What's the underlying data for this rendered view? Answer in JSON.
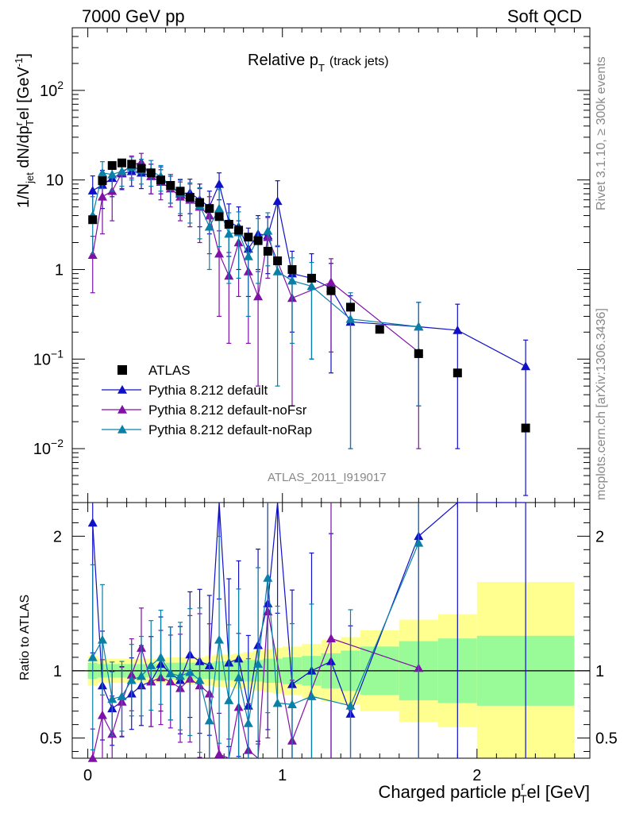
{
  "header": {
    "left": "7000 GeV pp",
    "right": "Soft QCD"
  },
  "side": {
    "rivet": "Rivet 3.1.10, ≥ 300k events",
    "mcplots": "mcplots.cern.ch [arXiv:1306.3436]"
  },
  "chart_data": {
    "type": "scatter",
    "title_main": "Relative p",
    "title_sub": "T",
    "title_extra": "(track jets)",
    "analysis_id": "ATLAS_2011_I919017",
    "ylabel": "1/N",
    "ylabel_sub": "jet",
    "ylabel_rest": " dN/dp",
    "ylabel_sup": "r",
    "ylabel_sub2": "T",
    "ylabel_end": "el [GeV",
    "ylabel_unit_sup": "-1",
    "ylabel_close": "]",
    "ratio_label": "Ratio to ATLAS",
    "xlabel": "Charged particle p",
    "xlabel_sup": "r",
    "xlabel_sub": "T",
    "xlabel_end": "el [GeV]",
    "xlim": [
      -0.08,
      2.58
    ],
    "ylim_log": [
      0.0025,
      500
    ],
    "ratio_ylim": [
      0.35,
      2.25
    ],
    "main_ticks": [
      {
        "value": 0.01,
        "base": "10",
        "exp": "−2"
      },
      {
        "value": 0.1,
        "base": "10",
        "exp": "−1"
      },
      {
        "value": 1,
        "base": "1",
        "exp": ""
      },
      {
        "value": 10,
        "base": "10",
        "exp": ""
      },
      {
        "value": 100,
        "base": "10",
        "exp": "2"
      }
    ],
    "x_ticks": [
      {
        "value": 0,
        "label": "0"
      },
      {
        "value": 1,
        "label": "1"
      },
      {
        "value": 2,
        "label": "2"
      }
    ],
    "ratio_ticks": [
      {
        "value": 0.5,
        "label": "0.5"
      },
      {
        "value": 1,
        "label": "1"
      },
      {
        "value": 2,
        "label": "2"
      }
    ],
    "legend": [
      {
        "name": "ATLAS",
        "color": "#000000",
        "marker": "square"
      },
      {
        "name": "Pythia 8.212 default",
        "color": "#1010c8",
        "marker": "triangle"
      },
      {
        "name": "Pythia 8.212 default-noFsr",
        "color": "#8010a8",
        "marker": "triangle"
      },
      {
        "name": "Pythia 8.212 default-noRap",
        "color": "#0a80a8",
        "marker": "triangle"
      }
    ],
    "data": {
      "x": [
        0.025,
        0.075,
        0.125,
        0.175,
        0.225,
        0.275,
        0.325,
        0.375,
        0.425,
        0.475,
        0.525,
        0.575,
        0.625,
        0.675,
        0.725,
        0.775,
        0.825,
        0.875,
        0.925,
        0.975,
        1.05,
        1.15,
        1.25,
        1.35,
        1.5,
        1.7,
        1.9,
        2.25
      ],
      "y": [
        3.6,
        9.8,
        14.5,
        15.5,
        15.0,
        13.5,
        12.0,
        10.0,
        8.7,
        7.5,
        6.4,
        5.6,
        4.8,
        3.9,
        3.2,
        2.75,
        2.3,
        2.1,
        1.6,
        1.25,
        1.0,
        0.8,
        0.58,
        0.38,
        0.215,
        0.115,
        0.07,
        0.017
      ]
    },
    "series": [
      {
        "name": "Pythia 8.212 default",
        "color": "#1010c8",
        "points": [
          [
            0.025,
            7.6
          ],
          [
            0.075,
            8.8
          ],
          [
            0.125,
            10.5
          ],
          [
            0.175,
            11.8
          ],
          [
            0.225,
            12.5
          ],
          [
            0.275,
            12.0
          ],
          [
            0.325,
            11.0
          ],
          [
            0.375,
            10.5
          ],
          [
            0.425,
            8.5
          ],
          [
            0.475,
            7.0
          ],
          [
            0.525,
            7.2
          ],
          [
            0.575,
            6.0
          ],
          [
            0.625,
            5.0
          ],
          [
            0.675,
            9.0
          ],
          [
            0.725,
            3.4
          ],
          [
            0.775,
            3.0
          ],
          [
            0.825,
            1.7
          ],
          [
            0.875,
            2.5
          ],
          [
            0.925,
            2.4
          ],
          [
            0.975,
            5.8
          ],
          [
            1.05,
            0.9
          ],
          [
            1.15,
            0.8
          ],
          [
            1.25,
            0.62
          ],
          [
            1.35,
            0.26
          ],
          [
            1.7,
            0.23
          ],
          [
            1.9,
            0.21
          ],
          [
            2.25,
            0.083
          ]
        ],
        "err": [
          3.5,
          4,
          4,
          4,
          4,
          4,
          4,
          3.5,
          3,
          3,
          3,
          3,
          2.5,
          3,
          2,
          2,
          1.2,
          1.5,
          1.5,
          4,
          0.7,
          0.7,
          0.55,
          0.25,
          0.2,
          0.2,
          0.08
        ],
        "ratio": [
          [
            0.025,
            2.1
          ],
          [
            0.075,
            0.89
          ],
          [
            0.125,
            0.72
          ],
          [
            0.175,
            0.77
          ],
          [
            0.225,
            0.83
          ],
          [
            0.275,
            0.89
          ],
          [
            0.325,
            0.92
          ],
          [
            0.375,
            1.05
          ],
          [
            0.425,
            0.98
          ],
          [
            0.475,
            0.93
          ],
          [
            0.525,
            1.12
          ],
          [
            0.575,
            1.07
          ],
          [
            0.625,
            1.04
          ],
          [
            0.675,
            2.3
          ],
          [
            0.725,
            1.06
          ],
          [
            0.775,
            1.09
          ],
          [
            0.825,
            0.74
          ],
          [
            0.875,
            1.19
          ],
          [
            0.925,
            1.5
          ],
          [
            0.975,
            4.6
          ],
          [
            1.05,
            0.9
          ],
          [
            1.15,
            1.0
          ],
          [
            1.25,
            1.07
          ],
          [
            1.35,
            0.68
          ],
          [
            1.7,
            2.0
          ],
          [
            1.9,
            3.0
          ],
          [
            2.25,
            4.9
          ]
        ]
      },
      {
        "name": "Pythia 8.212 default-noFsr",
        "color": "#8010a8",
        "points": [
          [
            0.025,
            1.45
          ],
          [
            0.075,
            6.5
          ],
          [
            0.125,
            7.5
          ],
          [
            0.175,
            12.0
          ],
          [
            0.225,
            14.5
          ],
          [
            0.275,
            15.8
          ],
          [
            0.325,
            11.0
          ],
          [
            0.375,
            9.5
          ],
          [
            0.425,
            8.0
          ],
          [
            0.475,
            6.5
          ],
          [
            0.525,
            6.0
          ],
          [
            0.575,
            5.0
          ],
          [
            0.625,
            4.0
          ],
          [
            0.675,
            1.5
          ],
          [
            0.725,
            0.85
          ],
          [
            0.775,
            2.0
          ],
          [
            0.825,
            0.95
          ],
          [
            0.875,
            0.5
          ],
          [
            0.925,
            2.3
          ],
          [
            1.05,
            0.48
          ],
          [
            1.25,
            0.72
          ],
          [
            1.7,
            0.12
          ]
        ],
        "err": [
          0.9,
          4,
          4,
          4,
          4,
          4,
          4,
          3.5,
          3,
          3,
          3,
          3,
          2.5,
          1.2,
          0.7,
          1.5,
          0.8,
          0.45,
          1.5,
          0.45,
          0.6,
          0.11
        ],
        "ratio": [
          [
            0.025,
            0.35
          ],
          [
            0.075,
            0.67
          ],
          [
            0.125,
            0.53
          ],
          [
            0.175,
            0.77
          ],
          [
            0.225,
            0.97
          ],
          [
            0.275,
            1.17
          ],
          [
            0.325,
            0.92
          ],
          [
            0.375,
            0.95
          ],
          [
            0.425,
            0.92
          ],
          [
            0.475,
            0.87
          ],
          [
            0.525,
            0.94
          ],
          [
            0.575,
            0.89
          ],
          [
            0.625,
            0.83
          ],
          [
            0.675,
            0.38
          ],
          [
            0.725,
            0.27
          ],
          [
            0.775,
            0.73
          ],
          [
            0.825,
            0.41
          ],
          [
            0.875,
            0.24
          ],
          [
            0.925,
            1.44
          ],
          [
            1.05,
            0.48
          ],
          [
            1.25,
            1.24
          ],
          [
            1.7,
            1.02
          ]
        ]
      },
      {
        "name": "Pythia 8.212 default-noRap",
        "color": "#0a80a8",
        "points": [
          [
            0.025,
            4.0
          ],
          [
            0.075,
            12.0
          ],
          [
            0.125,
            11.5
          ],
          [
            0.175,
            12.5
          ],
          [
            0.225,
            14.0
          ],
          [
            0.275,
            13.0
          ],
          [
            0.325,
            12.5
          ],
          [
            0.375,
            11.0
          ],
          [
            0.425,
            8.5
          ],
          [
            0.475,
            7.2
          ],
          [
            0.525,
            6.3
          ],
          [
            0.575,
            5.2
          ],
          [
            0.625,
            3.0
          ],
          [
            0.675,
            4.8
          ],
          [
            0.725,
            2.5
          ],
          [
            0.775,
            2.6
          ],
          [
            0.825,
            1.4
          ],
          [
            0.875,
            2.2
          ],
          [
            0.925,
            2.7
          ],
          [
            0.975,
            0.95
          ],
          [
            1.05,
            0.75
          ],
          [
            1.15,
            0.65
          ],
          [
            1.35,
            0.28
          ],
          [
            1.7,
            0.23
          ]
        ],
        "err": [
          2.5,
          4,
          4,
          4,
          4,
          4,
          4,
          3.5,
          3,
          3,
          3,
          3,
          2,
          3,
          1.8,
          1.8,
          1.1,
          1.5,
          1.6,
          0.9,
          0.6,
          0.55,
          0.27,
          0.2
        ],
        "ratio": [
          [
            0.025,
            1.1
          ],
          [
            0.075,
            1.23
          ],
          [
            0.125,
            0.79
          ],
          [
            0.175,
            0.81
          ],
          [
            0.225,
            0.93
          ],
          [
            0.275,
            0.96
          ],
          [
            0.325,
            1.04
          ],
          [
            0.375,
            1.1
          ],
          [
            0.425,
            0.98
          ],
          [
            0.475,
            0.96
          ],
          [
            0.525,
            0.99
          ],
          [
            0.575,
            0.93
          ],
          [
            0.625,
            0.63
          ],
          [
            0.675,
            1.23
          ],
          [
            0.725,
            0.78
          ],
          [
            0.775,
            0.95
          ],
          [
            0.825,
            0.61
          ],
          [
            0.875,
            1.05
          ],
          [
            0.925,
            1.69
          ],
          [
            0.975,
            0.76
          ],
          [
            1.05,
            0.75
          ],
          [
            1.15,
            0.81
          ],
          [
            1.35,
            0.74
          ],
          [
            1.7,
            1.95
          ]
        ]
      }
    ],
    "bands": {
      "edges": [
        0.0,
        0.05,
        0.1,
        0.15,
        0.2,
        0.25,
        0.3,
        0.35,
        0.4,
        0.45,
        0.5,
        0.55,
        0.6,
        0.65,
        0.7,
        0.75,
        0.8,
        0.85,
        0.9,
        0.95,
        1.0,
        1.1,
        1.2,
        1.3,
        1.4,
        1.6,
        1.8,
        2.0,
        2.5
      ],
      "inner": [
        0.06,
        0.05,
        0.05,
        0.05,
        0.05,
        0.05,
        0.05,
        0.05,
        0.06,
        0.06,
        0.06,
        0.06,
        0.06,
        0.07,
        0.07,
        0.07,
        0.08,
        0.08,
        0.09,
        0.09,
        0.1,
        0.11,
        0.13,
        0.15,
        0.18,
        0.22,
        0.24,
        0.26
      ],
      "outer": [
        0.11,
        0.09,
        0.09,
        0.09,
        0.09,
        0.09,
        0.09,
        0.09,
        0.1,
        0.1,
        0.1,
        0.1,
        0.11,
        0.12,
        0.12,
        0.13,
        0.14,
        0.15,
        0.16,
        0.17,
        0.18,
        0.2,
        0.23,
        0.25,
        0.3,
        0.38,
        0.42,
        0.66
      ]
    }
  }
}
